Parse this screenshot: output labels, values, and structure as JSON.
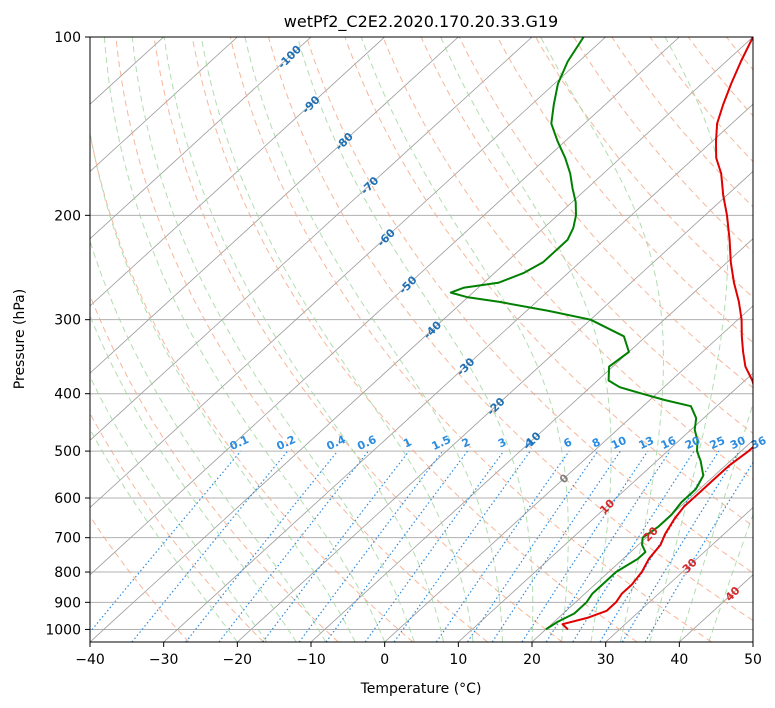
{
  "chart_data": {
    "type": "line",
    "subtype": "skew-t log-p",
    "title": "wetPf2_C2E2.2020.170.20.33.G19",
    "xlabel": "Temperature (°C)",
    "ylabel": "Pressure (hPa)",
    "xlim": [
      -40,
      50
    ],
    "ylim": [
      1050,
      100
    ],
    "y_scale": "log",
    "grid": true,
    "x_ticks": [
      "−40",
      "−30",
      "−20",
      "−10",
      "0",
      "10",
      "20",
      "30",
      "40",
      "50"
    ],
    "y_ticks": [
      "100",
      "200",
      "300",
      "400",
      "500",
      "600",
      "700",
      "800",
      "900",
      "1000"
    ],
    "isotherm_labels": {
      "blue": [
        "-100",
        "-90",
        "-80",
        "-70",
        "-60",
        "-50",
        "-40",
        "-30",
        "-20",
        "-10",
        "0"
      ],
      "red": [
        "10",
        "20",
        "30",
        "40"
      ]
    },
    "mixing_ratio_labels": [
      "0.1",
      "0.2",
      "0.4",
      "0.6",
      "1",
      "1.5",
      "2",
      "3",
      "4",
      "6",
      "8",
      "10",
      "13",
      "16",
      "20",
      "25",
      "30",
      "36"
    ],
    "series": [
      {
        "color": "#e00000",
        "pressure": [
          1000,
          980,
          955,
          930,
          900,
          870,
          840,
          800,
          760,
          720,
          690,
          650,
          620,
          590,
          560,
          530,
          500,
          480,
          460,
          440,
          420,
          400,
          380,
          360,
          340,
          320,
          300,
          280,
          260,
          240,
          220,
          200,
          185,
          170,
          160,
          150,
          140,
          130,
          120,
          110,
          100
        ],
        "values": [
          23,
          21.5,
          24,
          25.5,
          25.5,
          25,
          25,
          24.5,
          23.5,
          23,
          22,
          21,
          20.5,
          20.5,
          20.5,
          20.5,
          21,
          21,
          21,
          19.5,
          16.5,
          13.5,
          11,
          8,
          5.5,
          3,
          0.5,
          -2.5,
          -6,
          -9.5,
          -13,
          -17,
          -20.5,
          -24,
          -27,
          -29.5,
          -32,
          -34,
          -36,
          -38,
          -40
        ]
      },
      {
        "color": "#008000",
        "pressure": [
          1000,
          970,
          940,
          900,
          870,
          840,
          800,
          760,
          740,
          720,
          700,
          670,
          640,
          610,
          580,
          550,
          520,
          500,
          480,
          460,
          440,
          420,
          410,
          400,
          390,
          380,
          360,
          340,
          320,
          300,
          290,
          280,
          275,
          270,
          265,
          260,
          250,
          240,
          230,
          220,
          210,
          200,
          190,
          180,
          170,
          160,
          150,
          140,
          130,
          120,
          110,
          100
        ],
        "values": [
          20,
          20.5,
          21.5,
          21.5,
          21,
          21,
          21,
          22,
          22,
          20.5,
          19.5,
          20,
          20,
          19.5,
          19.5,
          18.5,
          16,
          14,
          12.5,
          10.5,
          9,
          6.5,
          2,
          -2,
          -6,
          -8.5,
          -10.5,
          -10,
          -13,
          -20,
          -27,
          -35,
          -40,
          -43,
          -42,
          -38,
          -36,
          -35,
          -35,
          -35,
          -36,
          -37.5,
          -39.5,
          -42,
          -44.5,
          -47.5,
          -51,
          -54.5,
          -57,
          -59.5,
          -61.5,
          -63
        ]
      }
    ]
  }
}
